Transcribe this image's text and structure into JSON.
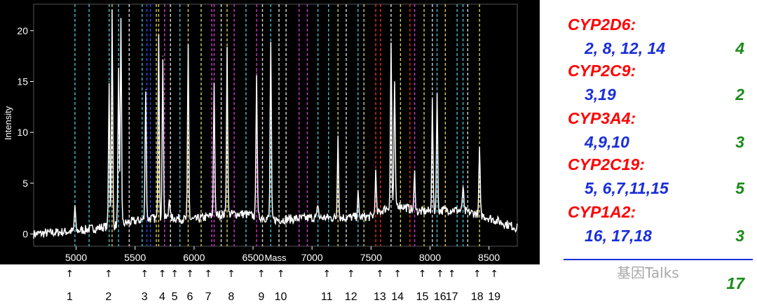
{
  "chart_data": {
    "type": "line",
    "xlabel": "Mass",
    "ylabel": "Intensity",
    "xlim": [
      4640,
      8740
    ],
    "ylim": [
      -1.2,
      22.6
    ],
    "x_ticks": [
      5000,
      5500,
      6000,
      6500,
      7000,
      7500,
      8000,
      8500
    ],
    "y_ticks": [
      0,
      5,
      10,
      15,
      20
    ],
    "grid": false,
    "background": "#000000",
    "trace_color": "#ffffff",
    "series": [
      {
        "peaks": [
          {
            "mass": 4990,
            "intensity": 2.8
          },
          {
            "mass": 5280,
            "intensity": 15.0
          },
          {
            "mass": 5305,
            "intensity": 21.8
          },
          {
            "mass": 5360,
            "intensity": 16.0
          },
          {
            "mass": 5380,
            "intensity": 21.0
          },
          {
            "mass": 5590,
            "intensity": 14.2
          },
          {
            "mass": 5700,
            "intensity": 20.0
          },
          {
            "mass": 5735,
            "intensity": 17.5
          },
          {
            "mass": 5790,
            "intensity": 3.8
          },
          {
            "mass": 5950,
            "intensity": 18.5
          },
          {
            "mass": 6170,
            "intensity": 14.8
          },
          {
            "mass": 6280,
            "intensity": 18.3
          },
          {
            "mass": 6530,
            "intensity": 16.0
          },
          {
            "mass": 6650,
            "intensity": 18.8
          },
          {
            "mass": 7050,
            "intensity": 3.0
          },
          {
            "mass": 7220,
            "intensity": 10.0
          },
          {
            "mass": 7390,
            "intensity": 4.0
          },
          {
            "mass": 7540,
            "intensity": 6.0
          },
          {
            "mass": 7670,
            "intensity": 18.8
          },
          {
            "mass": 7700,
            "intensity": 15.0
          },
          {
            "mass": 7870,
            "intensity": 6.0
          },
          {
            "mass": 8020,
            "intensity": 13.0
          },
          {
            "mass": 8060,
            "intensity": 13.8
          },
          {
            "mass": 8280,
            "intensity": 4.8
          },
          {
            "mass": 8420,
            "intensity": 8.5
          }
        ],
        "baseline": [
          [
            4640,
            0.0
          ],
          [
            5000,
            0.3
          ],
          [
            5300,
            0.8
          ],
          [
            5600,
            1.5
          ],
          [
            5800,
            1.6
          ],
          [
            6000,
            1.4
          ],
          [
            6200,
            1.9
          ],
          [
            6400,
            2.0
          ],
          [
            6700,
            1.4
          ],
          [
            7000,
            1.6
          ],
          [
            7200,
            1.6
          ],
          [
            7500,
            1.7
          ],
          [
            7700,
            3.0
          ],
          [
            7900,
            2.2
          ],
          [
            8200,
            2.4
          ],
          [
            8400,
            2.0
          ],
          [
            8740,
            0.6
          ]
        ]
      }
    ],
    "marker_lines": [
      {
        "mass": 4990,
        "color": "#4fd0e0"
      },
      {
        "mass": 5110,
        "color": "#4fd0e0"
      },
      {
        "mass": 5280,
        "color": "#4fd0e0"
      },
      {
        "mass": 5305,
        "color": "#f0e060"
      },
      {
        "mass": 5360,
        "color": "#4fd0e0"
      },
      {
        "mass": 5450,
        "color": "#f0f0f0"
      },
      {
        "mass": 5560,
        "color": "#4fd0e0"
      },
      {
        "mass": 5600,
        "color": "#3355ff"
      },
      {
        "mass": 5630,
        "color": "#3355ff"
      },
      {
        "mass": 5680,
        "color": "#f0e060"
      },
      {
        "mass": 5700,
        "color": "#f0e060"
      },
      {
        "mass": 5750,
        "color": "#e040e0"
      },
      {
        "mass": 5800,
        "color": "#f0f0f0"
      },
      {
        "mass": 5880,
        "color": "#4fd0e0"
      },
      {
        "mass": 5950,
        "color": "#f0e060"
      },
      {
        "mass": 6060,
        "color": "#f0e060"
      },
      {
        "mass": 6150,
        "color": "#e040e0"
      },
      {
        "mass": 6170,
        "color": "#e040e0"
      },
      {
        "mass": 6230,
        "color": "#f0f0f0"
      },
      {
        "mass": 6280,
        "color": "#f0e060"
      },
      {
        "mass": 6340,
        "color": "#e040e0"
      },
      {
        "mass": 6440,
        "color": "#4fd0e0"
      },
      {
        "mass": 6530,
        "color": "#e040e0"
      },
      {
        "mass": 6580,
        "color": "#f0f0f0"
      },
      {
        "mass": 6650,
        "color": "#4fd0e0"
      },
      {
        "mass": 6720,
        "color": "#f0f0f0"
      },
      {
        "mass": 6780,
        "color": "#f0f0f0"
      },
      {
        "mass": 6890,
        "color": "#e040e0"
      },
      {
        "mass": 6960,
        "color": "#e040e0"
      },
      {
        "mass": 7050,
        "color": "#4fd0e0"
      },
      {
        "mass": 7140,
        "color": "#4fd0e0"
      },
      {
        "mass": 7220,
        "color": "#f0e060"
      },
      {
        "mass": 7290,
        "color": "#f0f0f0"
      },
      {
        "mass": 7390,
        "color": "#4fd0e0"
      },
      {
        "mass": 7440,
        "color": "#f0e060"
      },
      {
        "mass": 7540,
        "color": "#ff3030"
      },
      {
        "mass": 7580,
        "color": "#ff3030"
      },
      {
        "mass": 7670,
        "color": "#f0f0f0"
      },
      {
        "mass": 7750,
        "color": "#f0e060"
      },
      {
        "mass": 7830,
        "color": "#ff3030"
      },
      {
        "mass": 7870,
        "color": "#e040e0"
      },
      {
        "mass": 7950,
        "color": "#f0e060"
      },
      {
        "mass": 8020,
        "color": "#f0f0f0"
      },
      {
        "mass": 8060,
        "color": "#4fd0e0"
      },
      {
        "mass": 8130,
        "color": "#f0e060"
      },
      {
        "mass": 8230,
        "color": "#4fd0e0"
      },
      {
        "mass": 8280,
        "color": "#4fd0e0"
      },
      {
        "mass": 8320,
        "color": "#f0f0f0"
      },
      {
        "mass": 8420,
        "color": "#f0e060"
      }
    ],
    "peak_arrows": [
      {
        "label": "1",
        "mass": 4945
      },
      {
        "label": "2",
        "mass": 5275
      },
      {
        "label": "3",
        "mass": 5580
      },
      {
        "label": "4",
        "mass": 5730
      },
      {
        "label": "5",
        "mass": 5835
      },
      {
        "label": "6",
        "mass": 5965
      },
      {
        "label": "7",
        "mass": 6120
      },
      {
        "label": "8",
        "mass": 6315
      },
      {
        "label": "9",
        "mass": 6570
      },
      {
        "label": "10",
        "mass": 6735
      },
      {
        "label": "11",
        "mass": 7125
      },
      {
        "label": "12",
        "mass": 7330
      },
      {
        "label": "13",
        "mass": 7575
      },
      {
        "label": "14",
        "mass": 7725
      },
      {
        "label": "15",
        "mass": 7935
      },
      {
        "label": "16",
        "mass": 8085
      },
      {
        "label": "17",
        "mass": 8185
      },
      {
        "label": "18",
        "mass": 8400
      },
      {
        "label": "19",
        "mass": 8545
      }
    ]
  },
  "legend": {
    "groups": [
      {
        "gene": "CYP2D6:",
        "peaks": "2, 8, 12, 14",
        "count": "4"
      },
      {
        "gene": "CYP2C9:",
        "peaks": "3,19",
        "count": "2"
      },
      {
        "gene": "CYP3A4:",
        "peaks": "4,9,10",
        "count": "3"
      },
      {
        "gene": "CYP2C19:",
        "peaks": "5, 6,7,11,15",
        "count": "5"
      },
      {
        "gene": "CYP1A2:",
        "peaks": "16, 17,18",
        "count": "3"
      }
    ],
    "total": "17",
    "watermark": "基因Talks",
    "colors": {
      "gene": "#ff0000",
      "peaks": "#1a2fd8",
      "count": "#1b8a1b",
      "divider": "#1a2fd8"
    }
  }
}
